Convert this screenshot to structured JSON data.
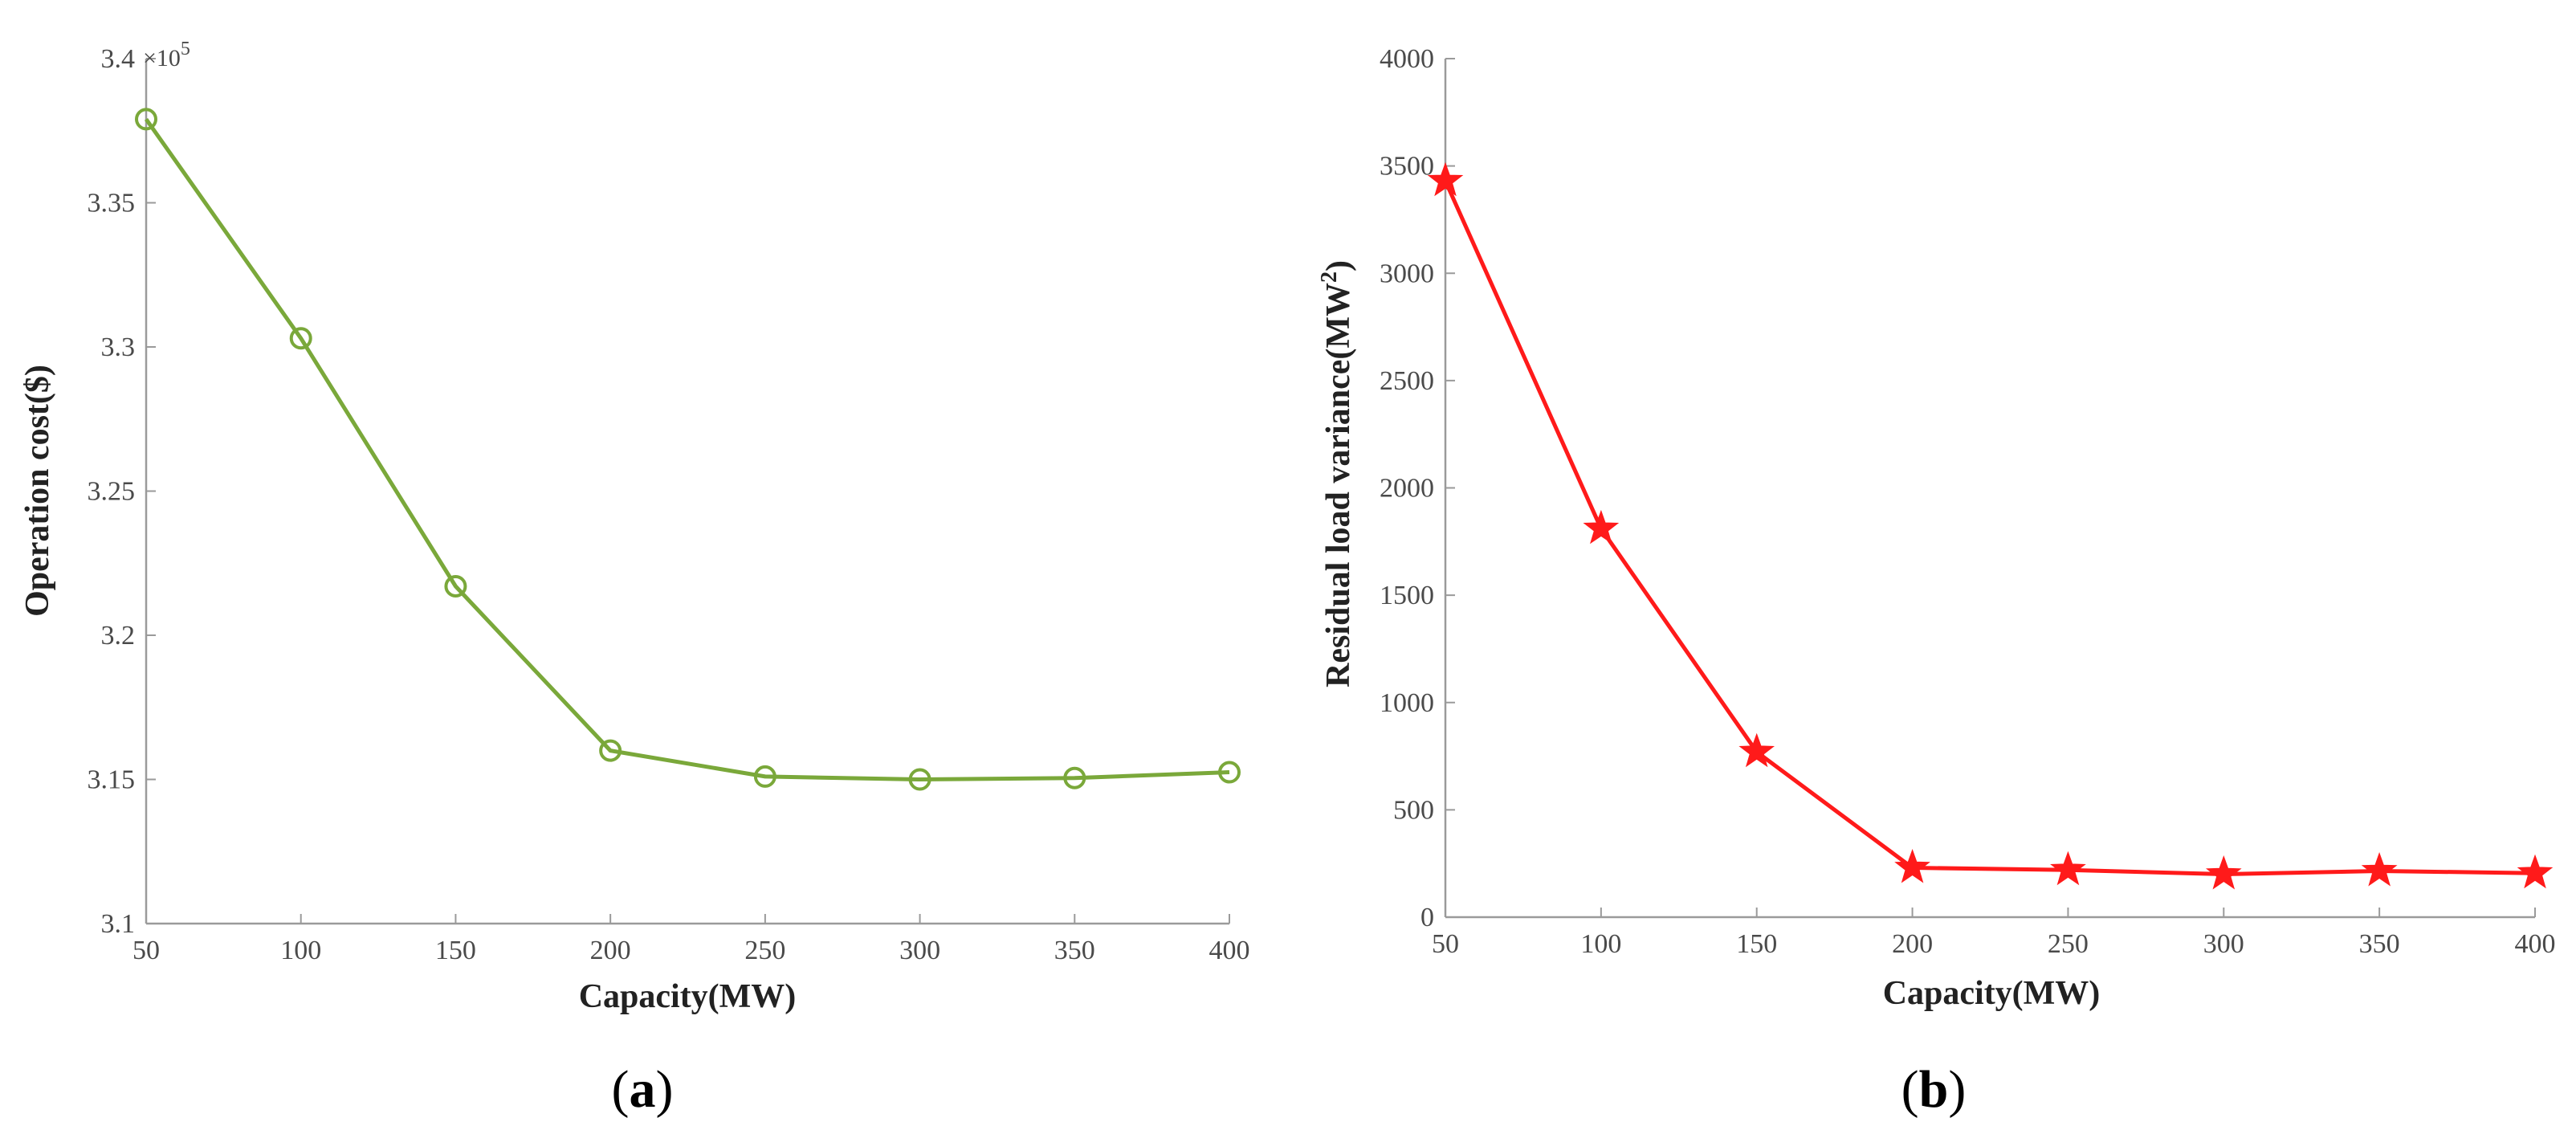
{
  "chart_data": [
    {
      "panel": "a",
      "type": "line",
      "categories": [
        50,
        100,
        150,
        200,
        250,
        300,
        350,
        400
      ],
      "values": [
        3.379,
        3.303,
        3.217,
        3.16,
        3.151,
        3.15,
        3.1505,
        3.1525
      ],
      "xlabel": "Capacity(MW)",
      "ylabel": "Operation cost($)",
      "multiplier": "×10",
      "multiplier_exp": "5",
      "xlim": [
        50,
        400
      ],
      "ylim": [
        3.1,
        3.4
      ],
      "xticks": [
        "50",
        "100",
        "150",
        "200",
        "250",
        "300",
        "350",
        "400"
      ],
      "yticks": [
        "3.1",
        "3.15",
        "3.2",
        "3.25",
        "3.3",
        "3.35",
        "3.4"
      ],
      "marker": "circle",
      "color": "#7aa83a",
      "caption_open": "(",
      "caption_letter": "a",
      "caption_close": ")"
    },
    {
      "panel": "b",
      "type": "line",
      "categories": [
        50,
        100,
        150,
        200,
        250,
        300,
        350,
        400
      ],
      "values": [
        3430,
        1810,
        770,
        230,
        220,
        200,
        215,
        205
      ],
      "xlabel": "Capacity(MW)",
      "ylabel": "Residual load variance(MW",
      "ylabel_sup": "2",
      "ylabel_close": ")",
      "xlim": [
        50,
        400
      ],
      "ylim": [
        0,
        4000
      ],
      "xticks": [
        "50",
        "100",
        "150",
        "200",
        "250",
        "300",
        "350",
        "400"
      ],
      "yticks": [
        "0",
        "500",
        "1000",
        "1500",
        "2000",
        "2500",
        "3000",
        "3500",
        "4000"
      ],
      "marker": "star",
      "color": "#ff1a1a",
      "caption_open": "(",
      "caption_letter": "b",
      "caption_close": ")"
    }
  ]
}
